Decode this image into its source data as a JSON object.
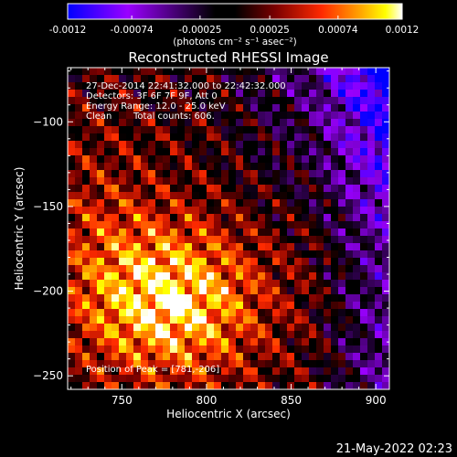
{
  "colorbar": {
    "tick_labels": [
      "-0.0012",
      "-0.00074",
      "-0.00025",
      "0.00025",
      "0.00074",
      "0.0012"
    ],
    "tick_values": [
      -0.0012,
      -0.00074,
      -0.00025,
      0.00025,
      0.00074,
      0.0012
    ],
    "range": [
      -0.0012,
      0.0012
    ],
    "units_label": "(photons cm⁻² s⁻¹ asec⁻²)",
    "colors": [
      "#0000ff",
      "#9a00ff",
      "#000000",
      "#7a0000",
      "#ff2a00",
      "#ffaa00",
      "#ffff00",
      "#ffffff"
    ]
  },
  "chart_data": {
    "type": "heatmap",
    "title": "Reconstructed RHESSI Image",
    "xlabel": "Heliocentric X (arcsec)",
    "ylabel": "Heliocentric Y (arcsec)",
    "xlim": [
      718,
      908
    ],
    "ylim": [
      -258,
      -68
    ],
    "x_ticks": [
      750,
      800,
      850,
      900
    ],
    "y_ticks": [
      -100,
      -150,
      -200,
      -250
    ],
    "x_tick_labels": [
      "750",
      "800",
      "850",
      "900"
    ],
    "y_tick_labels": [
      "−100",
      "−150",
      "−200",
      "−250"
    ],
    "annotations": [
      "27-Dec-2014 22:41:32.000 to 22:42:32.000",
      "Detectors: 3F 6F 7F 9F, Att 0",
      "Energy Range: 12.0 - 25.0 keV",
      "Clean",
      "Total counts: 606."
    ],
    "peak_label": "Position of Peak = [781,-206]",
    "peak": [
      781,
      -206
    ],
    "peak_value": 0.0012
  },
  "footer": {
    "timestamp": "21-May-2022 02:23"
  }
}
